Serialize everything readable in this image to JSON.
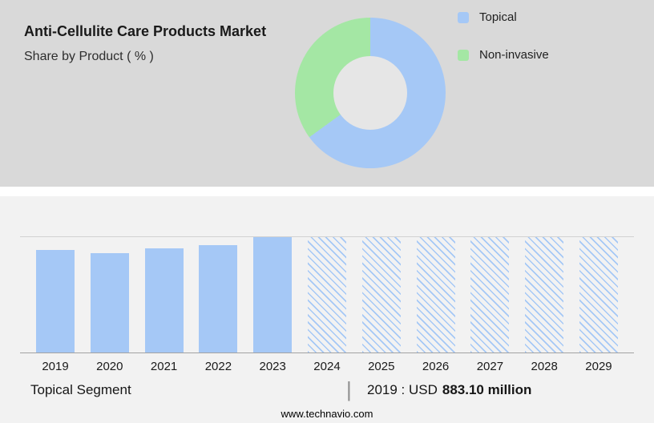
{
  "header": {
    "title": "Anti-Cellulite Care Products Market",
    "subtitle": "Share by Product ( % )"
  },
  "colors": {
    "topical_blue": "#a5c8f6",
    "non_invasive_green": "#a4e7a4",
    "top_panel_bg": "#d9d9d9",
    "bottom_panel_bg": "#f2f2f2"
  },
  "legend": {
    "items": [
      {
        "label": "Topical",
        "color": "#a5c8f6"
      },
      {
        "label": "Non-invasive",
        "color": "#a4e7a4"
      }
    ]
  },
  "chart_data": [
    {
      "type": "pie",
      "title": "Share by Product ( % )",
      "donut": true,
      "labels": [
        "Topical",
        "Non-invasive"
      ],
      "values_pct_estimated": [
        65,
        35
      ],
      "colors": [
        "#a5c8f6",
        "#a4e7a4"
      ],
      "legend_position": "right"
    },
    {
      "type": "bar",
      "categories": [
        "2019",
        "2020",
        "2021",
        "2022",
        "2023",
        "2024",
        "2025",
        "2026",
        "2027",
        "2028",
        "2029"
      ],
      "values_relative_pct": [
        89,
        86,
        90,
        93,
        100,
        100,
        100,
        100,
        100,
        100,
        100
      ],
      "historical_years": [
        "2019",
        "2020",
        "2021",
        "2022",
        "2023"
      ],
      "forecast_years": [
        "2024",
        "2025",
        "2026",
        "2027",
        "2028",
        "2029"
      ],
      "forecast_style": "hatched",
      "bar_color": "#a5c8f6",
      "known_values": {
        "2019": "USD 883.10 million"
      },
      "xlabel": "",
      "ylabel": "",
      "ylim_note": "no y-axis labels shown; forecast bars drawn full height to top gridline",
      "grid": "top-and-baseline-lines-only",
      "legend_position": "none"
    }
  ],
  "caption": {
    "segment_label": "Topical Segment",
    "divider": "|",
    "value_prefix": "2019 : USD",
    "value_bold": "883.10 million"
  },
  "footer": {
    "website": "www.technavio.com"
  }
}
